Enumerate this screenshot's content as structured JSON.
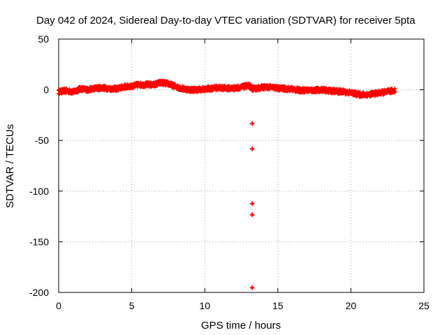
{
  "chart_data": {
    "type": "scatter",
    "title": "Day 042 of 2024, Sidereal Day-to-day VTEC variation (SDTVAR) for receiver 5pta",
    "xlabel": "GPS time / hours",
    "ylabel": "SDTVAR / TECUs",
    "xlim": [
      0,
      25
    ],
    "ylim": [
      -200,
      50
    ],
    "xticks": [
      0,
      5,
      10,
      15,
      20,
      25
    ],
    "yticks": [
      -200,
      -150,
      -100,
      -50,
      0,
      50
    ],
    "grid": true,
    "marker": "+",
    "color": "#ff0000",
    "series": [
      {
        "name": "SDTVAR",
        "trend": [
          [
            0.0,
            -2
          ],
          [
            0.5,
            -1
          ],
          [
            1.0,
            -2
          ],
          [
            1.5,
            1
          ],
          [
            2.0,
            0
          ],
          [
            2.5,
            1.5
          ],
          [
            3.0,
            2
          ],
          [
            3.5,
            1
          ],
          [
            4.0,
            1
          ],
          [
            4.5,
            3
          ],
          [
            5.0,
            3.5
          ],
          [
            5.5,
            5
          ],
          [
            6.0,
            5
          ],
          [
            6.5,
            5
          ],
          [
            7.0,
            7
          ],
          [
            7.5,
            6
          ],
          [
            8.0,
            3
          ],
          [
            8.5,
            1
          ],
          [
            9.0,
            0
          ],
          [
            9.5,
            0
          ],
          [
            10.0,
            0.5
          ],
          [
            10.5,
            1.5
          ],
          [
            11.0,
            2
          ],
          [
            11.5,
            1.5
          ],
          [
            12.0,
            1.5
          ],
          [
            12.5,
            2.5
          ],
          [
            13.0,
            4
          ],
          [
            13.3,
            1
          ],
          [
            13.6,
            1.5
          ],
          [
            14.0,
            2.5
          ],
          [
            14.5,
            2.5
          ],
          [
            15.0,
            1.5
          ],
          [
            15.5,
            1
          ],
          [
            16.0,
            0.5
          ],
          [
            16.5,
            -0.5
          ],
          [
            17.0,
            -0.5
          ],
          [
            17.5,
            -0.5
          ],
          [
            18.0,
            0
          ],
          [
            18.5,
            -1
          ],
          [
            19.0,
            -1.5
          ],
          [
            19.5,
            -2
          ],
          [
            20.0,
            -3
          ],
          [
            20.5,
            -4.5
          ],
          [
            21.0,
            -5
          ],
          [
            21.5,
            -4
          ],
          [
            22.0,
            -3
          ],
          [
            22.5,
            -2
          ],
          [
            23.0,
            -0.5
          ]
        ],
        "outliers": [
          [
            13.25,
            -33
          ],
          [
            13.25,
            -58
          ],
          [
            13.25,
            -112
          ],
          [
            13.25,
            -123
          ],
          [
            13.25,
            -195
          ]
        ]
      }
    ]
  }
}
